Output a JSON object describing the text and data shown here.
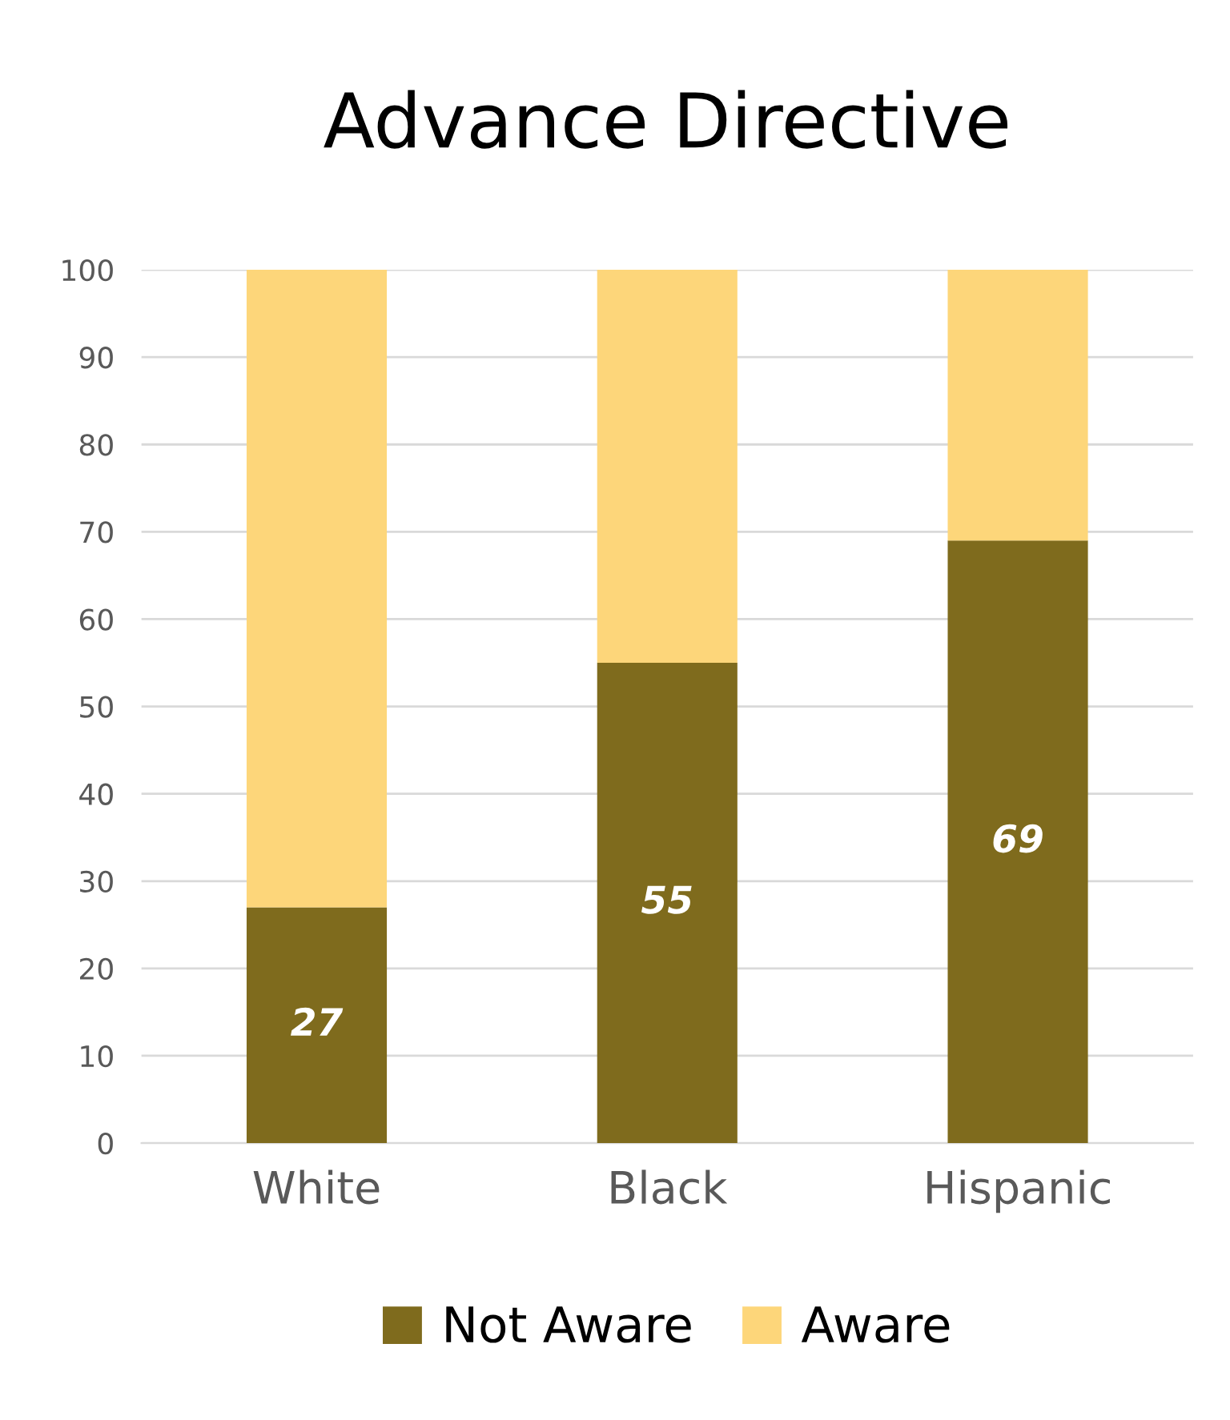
{
  "chart_data": {
    "type": "bar",
    "title": "Advance Directive",
    "stacked": true,
    "categories": [
      "White",
      "Black",
      "Hispanic"
    ],
    "series": [
      {
        "name": "Not Aware",
        "color": "#7f6b1d",
        "values": [
          27,
          55,
          69
        ],
        "value_labels": [
          "27",
          "55",
          "69"
        ]
      },
      {
        "name": "Aware",
        "color": "#fdd67a",
        "values": [
          73,
          45,
          31
        ]
      }
    ],
    "ylim": [
      0,
      100
    ],
    "yticks": [
      0,
      10,
      20,
      30,
      40,
      50,
      60,
      70,
      80,
      90,
      100
    ],
    "grid": "y",
    "legend": "bottom"
  }
}
